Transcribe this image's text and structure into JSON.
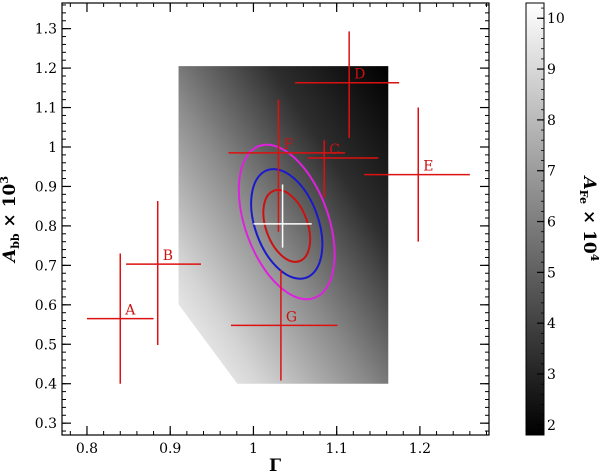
{
  "chart_data": {
    "type": "scatter",
    "title": "",
    "xlabel": "Γ",
    "ylabel_main": "A",
    "ylabel_sub": "bb",
    "ylabel_mult": " × 10",
    "ylabel_exp": "3",
    "colorbar_label_main": "A",
    "colorbar_label_sub": "Fe",
    "colorbar_label_mult": " × 10",
    "colorbar_label_exp": "4",
    "xlim": [
      0.77,
      1.283
    ],
    "ylim": [
      0.27,
      1.365
    ],
    "x_ticks": [
      {
        "value": 0.8,
        "label": "0.8"
      },
      {
        "value": 0.9,
        "label": "0.9"
      },
      {
        "value": 1.0,
        "label": "1"
      },
      {
        "value": 1.1,
        "label": "1.1"
      },
      {
        "value": 1.2,
        "label": "1.2"
      }
    ],
    "y_ticks": [
      {
        "value": 0.3,
        "label": "0.3"
      },
      {
        "value": 0.4,
        "label": "0.4"
      },
      {
        "value": 0.5,
        "label": "0.5"
      },
      {
        "value": 0.6,
        "label": "0.6"
      },
      {
        "value": 0.7,
        "label": "0.7"
      },
      {
        "value": 0.8,
        "label": "0.8"
      },
      {
        "value": 0.9,
        "label": "0.9"
      },
      {
        "value": 1.0,
        "label": "1"
      },
      {
        "value": 1.1,
        "label": "1.1"
      },
      {
        "value": 1.2,
        "label": "1.2"
      },
      {
        "value": 1.3,
        "label": "1.3"
      }
    ],
    "colorbar": {
      "range": [
        1.8,
        10.3
      ],
      "ticks": [
        {
          "value": 2,
          "label": "2"
        },
        {
          "value": 3,
          "label": "3"
        },
        {
          "value": 4,
          "label": "4"
        },
        {
          "value": 5,
          "label": "5"
        },
        {
          "value": 6,
          "label": "6"
        },
        {
          "value": 7,
          "label": "7"
        },
        {
          "value": 8,
          "label": "8"
        },
        {
          "value": 9,
          "label": "9"
        },
        {
          "value": 10,
          "label": "10"
        }
      ]
    },
    "heatmap_region": {
      "x_range": [
        0.91,
        1.162
      ],
      "y_range": [
        0.4,
        1.205
      ]
    },
    "points": [
      {
        "label": "A",
        "x": 0.84,
        "y": 0.565,
        "x_err": [
          0.04,
          0.04
        ],
        "y_err": [
          0.165,
          0.165
        ]
      },
      {
        "label": "B",
        "x": 0.885,
        "y": 0.703,
        "x_err": [
          0.038,
          0.052
        ],
        "y_err": [
          0.205,
          0.16
        ]
      },
      {
        "label": "C",
        "x": 1.085,
        "y": 0.972,
        "x_err": [
          0.02,
          0.065
        ],
        "y_err": [
          0.1,
          0.045
        ]
      },
      {
        "label": "D",
        "x": 1.115,
        "y": 1.163,
        "x_err": [
          0.065,
          0.06
        ],
        "y_err": [
          0.14,
          0.13
        ]
      },
      {
        "label": "E",
        "x": 1.198,
        "y": 0.93,
        "x_err": [
          0.065,
          0.062
        ],
        "y_err": [
          0.17,
          0.17
        ]
      },
      {
        "label": "F",
        "x": 1.03,
        "y": 0.985,
        "x_err": [
          0.06,
          0.08
        ],
        "y_err": [
          0.2,
          0.135
        ]
      },
      {
        "label": "G",
        "x": 1.033,
        "y": 0.548,
        "x_err": [
          0.06,
          0.068
        ],
        "y_err": [
          0.14,
          0.14
        ]
      }
    ],
    "best_fit": {
      "x": 1.035,
      "y": 0.805,
      "x_err": [
        0.035,
        0.035
      ],
      "y_err": [
        0.06,
        0.1
      ]
    },
    "contours": [
      {
        "color": "#cc1111",
        "cx": 1.04,
        "cy": 0.8,
        "rx": 0.025,
        "ry": 0.095,
        "rotation_deg": -20
      },
      {
        "color": "#1a1acc",
        "cx": 1.04,
        "cy": 0.805,
        "rx": 0.038,
        "ry": 0.145,
        "rotation_deg": -20
      },
      {
        "color": "#dd22dd",
        "cx": 1.04,
        "cy": 0.81,
        "rx": 0.05,
        "ry": 0.205,
        "rotation_deg": -20
      }
    ],
    "colors": {
      "error_bars": "#dd1111",
      "labels": "#cc1111",
      "best_fit": "#ffffff",
      "axis": "#000000"
    }
  }
}
